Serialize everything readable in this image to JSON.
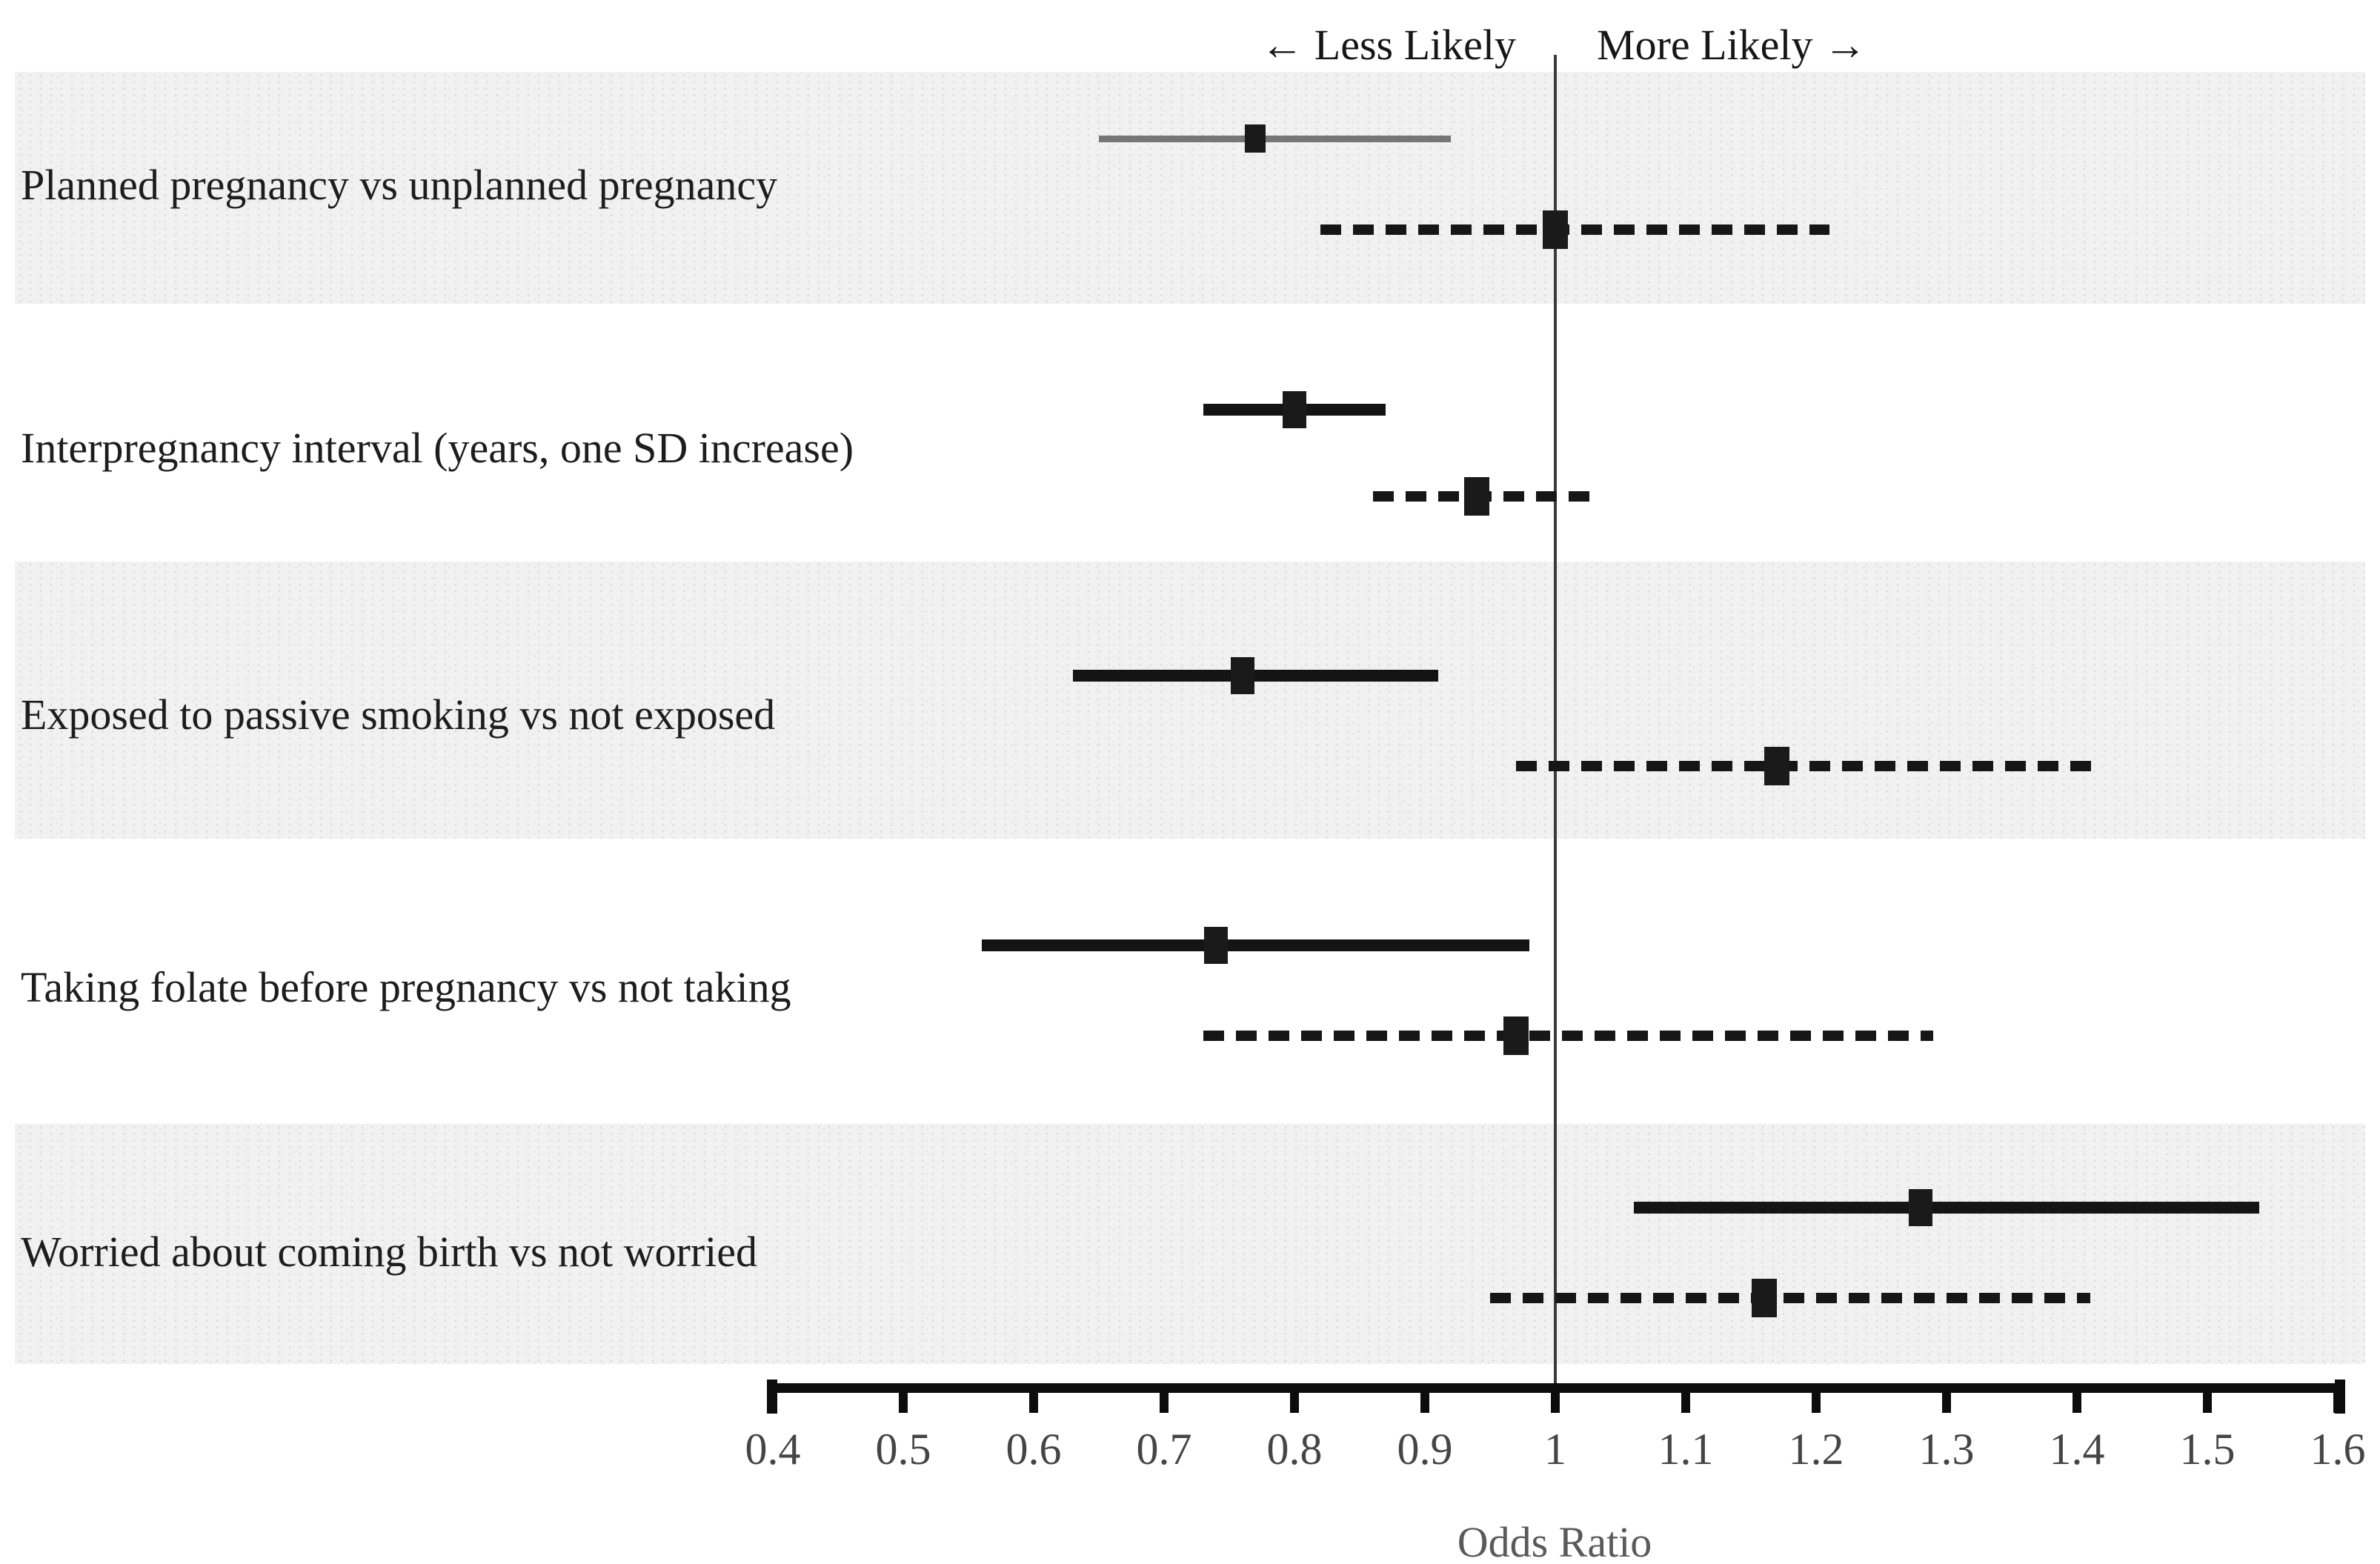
{
  "header": {
    "left_label": "← Less Likely",
    "right_label": "More Likely →"
  },
  "axis": {
    "label": "Odds Ratio",
    "min": 0.4,
    "max": 1.6,
    "tick_labels": [
      "0.4",
      "0.5",
      "0.6",
      "0.7",
      "0.8",
      "0.9",
      "1",
      "1.1",
      "1.2",
      "1.3",
      "1.4",
      "1.5",
      "1.6"
    ],
    "reference_line": 1
  },
  "colors": {
    "black_series": "#141414",
    "gray_series": "#767676",
    "band_fill": "#f1f1f1",
    "reference_line": "#3a3a3a",
    "tick_text": "#454545",
    "axis_title_text": "#5a5a5a"
  },
  "chart_data": {
    "type": "scatter",
    "subtype": "forest-plot",
    "title": "",
    "xlabel": "Odds Ratio",
    "xlim": [
      0.4,
      1.6
    ],
    "reference_line": 1,
    "direction_annotations": [
      "← Less Likely",
      "More Likely →"
    ],
    "series_styles": [
      {
        "name": "solid",
        "line": "solid",
        "marker": "filled-square"
      },
      {
        "name": "dashed",
        "line": "dashed",
        "marker": "filled-square"
      }
    ],
    "rows": [
      {
        "label": "Planned pregnancy vs unplanned pregnancy",
        "solid": {
          "or": 0.77,
          "ci_low": 0.65,
          "ci_high": 0.92
        },
        "dashed": {
          "or": 1.0,
          "ci_low": 0.82,
          "ci_high": 1.21
        }
      },
      {
        "label": "Interpregnancy interval (years, one SD increase)",
        "solid": {
          "or": 0.8,
          "ci_low": 0.73,
          "ci_high": 0.87
        },
        "dashed": {
          "or": 0.94,
          "ci_low": 0.86,
          "ci_high": 1.03
        }
      },
      {
        "label": "Exposed to passive smoking vs not exposed",
        "solid": {
          "or": 0.76,
          "ci_low": 0.63,
          "ci_high": 0.91
        },
        "dashed": {
          "or": 1.17,
          "ci_low": 0.97,
          "ci_high": 1.42
        }
      },
      {
        "label": "Taking folate before pregnancy vs not taking",
        "solid": {
          "or": 0.74,
          "ci_low": 0.56,
          "ci_high": 0.98
        },
        "dashed": {
          "or": 0.97,
          "ci_low": 0.73,
          "ci_high": 1.29
        }
      },
      {
        "label": "Worried about coming birth vs not worried",
        "solid": {
          "or": 1.28,
          "ci_low": 1.06,
          "ci_high": 1.54
        },
        "dashed": {
          "or": 1.16,
          "ci_low": 0.95,
          "ci_high": 1.41
        }
      }
    ]
  }
}
